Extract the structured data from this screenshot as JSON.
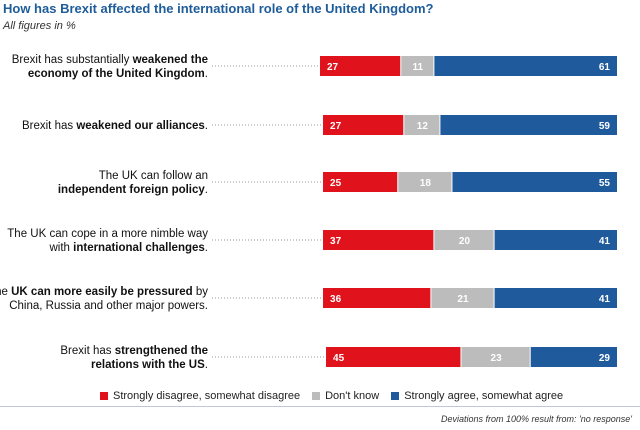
{
  "title": "How has Brexit affected the international role of the United Kingdom?",
  "subtitle": "All figures in %",
  "footnote": "Deviations from 100% result from: 'no response'",
  "colors": {
    "disagree": "#e0121c",
    "dontknow": "#bcbcbc",
    "agree": "#1f5a9c"
  },
  "chart_data": {
    "type": "bar",
    "stacked": true,
    "orientation": "horizontal",
    "categories": [
      [
        {
          "t": "Brexit has substantially ",
          "b": false
        },
        {
          "t": "weakened the",
          "b": true
        },
        {
          "t": "|",
          "b": false
        },
        {
          "t": "economy of the United Kingdom",
          "b": true
        },
        {
          "t": ".",
          "b": false
        }
      ],
      [
        {
          "t": "Brexit has ",
          "b": false
        },
        {
          "t": "weakened our alliances",
          "b": true
        },
        {
          "t": ".",
          "b": false
        }
      ],
      [
        {
          "t": "The UK can follow an",
          "b": false
        },
        {
          "t": "|",
          "b": false
        },
        {
          "t": "independent foreign policy",
          "b": true
        },
        {
          "t": ".",
          "b": false
        }
      ],
      [
        {
          "t": "The UK can cope in a more nimble way",
          "b": false
        },
        {
          "t": "|",
          "b": false
        },
        {
          "t": "with ",
          "b": false
        },
        {
          "t": "international challenges",
          "b": true
        },
        {
          "t": ".",
          "b": false
        }
      ],
      [
        {
          "t": "The ",
          "b": false
        },
        {
          "t": "UK can more easily be pressured",
          "b": true
        },
        {
          "t": " by",
          "b": false
        },
        {
          "t": "|",
          "b": false
        },
        {
          "t": "China, Russia and other major powers.",
          "b": false
        }
      ],
      [
        {
          "t": "Brexit has ",
          "b": false
        },
        {
          "t": "strengthened the",
          "b": true
        },
        {
          "t": "|",
          "b": false
        },
        {
          "t": "relations with the US",
          "b": true
        },
        {
          "t": ".",
          "b": false
        }
      ]
    ],
    "series": [
      {
        "name": "Strongly disagree, somewhat disagree",
        "values": [
          27,
          27,
          25,
          37,
          36,
          45
        ]
      },
      {
        "name": "Don't know",
        "values": [
          11,
          12,
          18,
          20,
          21,
          23
        ]
      },
      {
        "name": "Strongly agree, somewhat agree",
        "values": [
          61,
          59,
          55,
          41,
          41,
          29
        ]
      }
    ]
  }
}
